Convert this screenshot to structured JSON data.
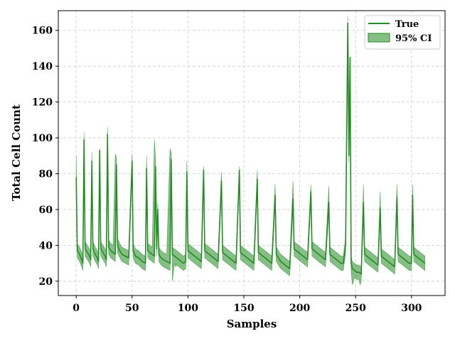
{
  "chart_data": {
    "type": "line",
    "xlabel": "Samples",
    "ylabel": "Total Cell Count",
    "xlim": [
      -16,
      330
    ],
    "ylim": [
      12,
      171
    ],
    "xticks": [
      0,
      50,
      100,
      150,
      200,
      250,
      300
    ],
    "yticks": [
      20,
      40,
      60,
      80,
      100,
      120,
      140,
      160
    ],
    "grid": true,
    "legend_position": "top-right",
    "colors": {
      "line": "#228B22",
      "band": "#228B22"
    },
    "series": [
      {
        "name": "True",
        "kind": "line",
        "points": [
          [
            0,
            78
          ],
          [
            1,
            37
          ],
          [
            3,
            35
          ],
          [
            5,
            32
          ],
          [
            6,
            30
          ],
          [
            7,
            99
          ],
          [
            8,
            38
          ],
          [
            10,
            36
          ],
          [
            12,
            34
          ],
          [
            13,
            32
          ],
          [
            14,
            87
          ],
          [
            15,
            38
          ],
          [
            17,
            35
          ],
          [
            19,
            33
          ],
          [
            20,
            31
          ],
          [
            21,
            93
          ],
          [
            22,
            38
          ],
          [
            24,
            36
          ],
          [
            26,
            34
          ],
          [
            27,
            32
          ],
          [
            28,
            102
          ],
          [
            29,
            39
          ],
          [
            31,
            37
          ],
          [
            33,
            36
          ],
          [
            35,
            35
          ],
          [
            36,
            85
          ],
          [
            37,
            40
          ],
          [
            39,
            37
          ],
          [
            41,
            35
          ],
          [
            44,
            34
          ],
          [
            47,
            33
          ],
          [
            50,
            87
          ],
          [
            51,
            37
          ],
          [
            53,
            34
          ],
          [
            56,
            33
          ],
          [
            59,
            31
          ],
          [
            62,
            30
          ],
          [
            63,
            83
          ],
          [
            64,
            37
          ],
          [
            66,
            36
          ],
          [
            68,
            35
          ],
          [
            70,
            34
          ],
          [
            71,
            84
          ],
          [
            72,
            38
          ],
          [
            73,
            60
          ],
          [
            74,
            35
          ],
          [
            76,
            33
          ],
          [
            78,
            32
          ],
          [
            81,
            31
          ],
          [
            84,
            30
          ],
          [
            85,
            88
          ],
          [
            86,
            35
          ],
          [
            88,
            34
          ],
          [
            90,
            33
          ],
          [
            92,
            32
          ],
          [
            94,
            31
          ],
          [
            96,
            30
          ],
          [
            98,
            31
          ],
          [
            99,
            81
          ],
          [
            100,
            37
          ],
          [
            102,
            36
          ],
          [
            104,
            35
          ],
          [
            106,
            34
          ],
          [
            108,
            33
          ],
          [
            110,
            32
          ],
          [
            112,
            31
          ],
          [
            114,
            82
          ],
          [
            115,
            37
          ],
          [
            117,
            36
          ],
          [
            119,
            35
          ],
          [
            121,
            34
          ],
          [
            123,
            33
          ],
          [
            125,
            32
          ],
          [
            127,
            31
          ],
          [
            130,
            76
          ],
          [
            131,
            36
          ],
          [
            133,
            35
          ],
          [
            135,
            34
          ],
          [
            137,
            33
          ],
          [
            139,
            32
          ],
          [
            141,
            31
          ],
          [
            143,
            30
          ],
          [
            146,
            82
          ],
          [
            147,
            36
          ],
          [
            149,
            35
          ],
          [
            151,
            34
          ],
          [
            153,
            33
          ],
          [
            155,
            32
          ],
          [
            157,
            31
          ],
          [
            159,
            30
          ],
          [
            162,
            77
          ],
          [
            163,
            36
          ],
          [
            165,
            35
          ],
          [
            167,
            34
          ],
          [
            169,
            33
          ],
          [
            171,
            32
          ],
          [
            173,
            31
          ],
          [
            175,
            30
          ],
          [
            178,
            68
          ],
          [
            179,
            35
          ],
          [
            181,
            33
          ],
          [
            183,
            31
          ],
          [
            185,
            30
          ],
          [
            187,
            29
          ],
          [
            189,
            28
          ],
          [
            191,
            27
          ],
          [
            194,
            66
          ],
          [
            195,
            38
          ],
          [
            197,
            37
          ],
          [
            199,
            36
          ],
          [
            201,
            35
          ],
          [
            203,
            34
          ],
          [
            205,
            33
          ],
          [
            207,
            32
          ],
          [
            210,
            70
          ],
          [
            211,
            38
          ],
          [
            213,
            37
          ],
          [
            215,
            36
          ],
          [
            217,
            35
          ],
          [
            219,
            34
          ],
          [
            221,
            33
          ],
          [
            223,
            32
          ],
          [
            226,
            64
          ],
          [
            227,
            35
          ],
          [
            229,
            34
          ],
          [
            231,
            33
          ],
          [
            233,
            32
          ],
          [
            235,
            31
          ],
          [
            237,
            30
          ],
          [
            239,
            30
          ],
          [
            241,
            40
          ],
          [
            243,
            164
          ],
          [
            244,
            90
          ],
          [
            245,
            145
          ],
          [
            246,
            30
          ],
          [
            247,
            27
          ],
          [
            249,
            26
          ],
          [
            251,
            25
          ],
          [
            253,
            25
          ],
          [
            255,
            24
          ],
          [
            257,
            64
          ],
          [
            258,
            35
          ],
          [
            260,
            34
          ],
          [
            262,
            33
          ],
          [
            264,
            32
          ],
          [
            266,
            31
          ],
          [
            268,
            30
          ],
          [
            270,
            29
          ],
          [
            272,
            61
          ],
          [
            273,
            34
          ],
          [
            275,
            33
          ],
          [
            277,
            32
          ],
          [
            279,
            31
          ],
          [
            281,
            30
          ],
          [
            283,
            29
          ],
          [
            285,
            28
          ],
          [
            287,
            67
          ],
          [
            288,
            35
          ],
          [
            290,
            34
          ],
          [
            292,
            33
          ],
          [
            294,
            32
          ],
          [
            296,
            31
          ],
          [
            298,
            30
          ],
          [
            300,
            30
          ],
          [
            301,
            68
          ],
          [
            302,
            35
          ],
          [
            304,
            34
          ],
          [
            306,
            33
          ],
          [
            308,
            32
          ],
          [
            310,
            31
          ],
          [
            312,
            30
          ]
        ]
      },
      {
        "name": "95% CI",
        "kind": "band",
        "spread": 4,
        "spike_upper": [
          [
            0,
            90
          ],
          [
            14,
            92
          ],
          [
            21,
            94
          ],
          [
            35,
            91
          ],
          [
            50,
            91
          ],
          [
            63,
            90
          ],
          [
            70,
            99
          ],
          [
            84,
            94
          ],
          [
            99,
            87
          ],
          [
            114,
            84
          ],
          [
            130,
            81
          ],
          [
            146,
            84
          ],
          [
            162,
            82
          ],
          [
            178,
            74
          ],
          [
            194,
            76
          ],
          [
            210,
            74
          ],
          [
            226,
            73
          ],
          [
            245,
            145
          ],
          [
            257,
            74
          ],
          [
            272,
            70
          ],
          [
            287,
            74
          ],
          [
            301,
            74
          ]
        ],
        "spike_lower": [
          [
            86,
            20
          ],
          [
            89,
            28
          ],
          [
            247,
            18
          ],
          [
            254,
            18
          ]
        ]
      }
    ]
  }
}
